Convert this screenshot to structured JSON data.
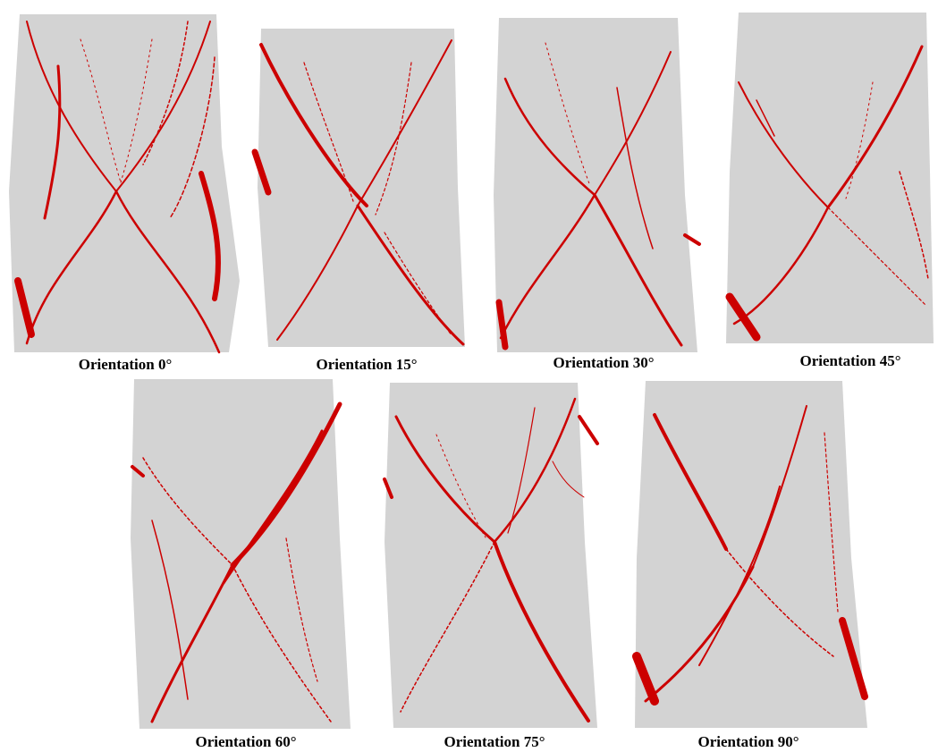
{
  "panels": [
    {
      "caption": "Orientation 0°"
    },
    {
      "caption": "Orientation 15°"
    },
    {
      "caption": "Orientation 30°"
    },
    {
      "caption": "Orientation 45°"
    },
    {
      "caption": "Orientation 60°"
    },
    {
      "caption": "Orientation 75°"
    },
    {
      "caption": "Orientation 90°"
    }
  ],
  "colors": {
    "specimen": "#d3d3d3",
    "crack": "#cc0000",
    "crack_light": "#e06060"
  }
}
